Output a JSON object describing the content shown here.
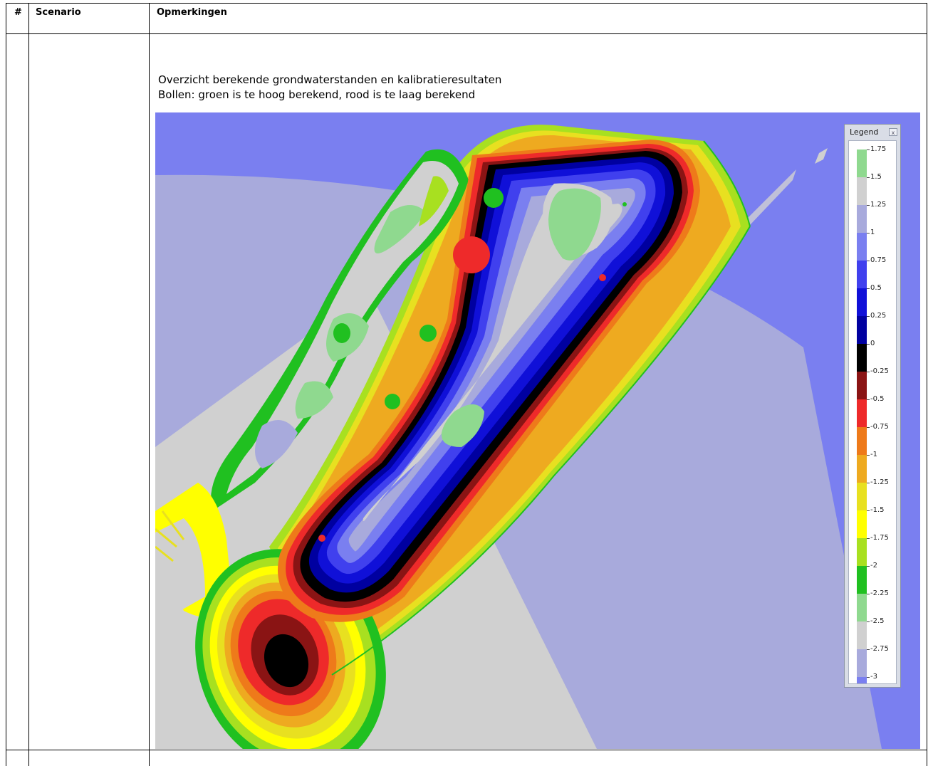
{
  "table": {
    "headers": [
      "#",
      "Scenario",
      "Opmerkingen"
    ],
    "caption_lines": [
      "Overzicht berekende grondwaterstanden en kalibratieresultaten",
      "Bollen: groen is te hoog berekend, rood is te laag berekend"
    ]
  },
  "legend": {
    "title": "Legend",
    "close": "x",
    "labels": [
      "1.75",
      "1.5",
      "1.25",
      "1",
      "0.75",
      "0.5",
      "0.25",
      "0",
      "-0.25",
      "-0.5",
      "-0.75",
      "-1",
      "-1.25",
      "-1.5",
      "-1.75",
      "-2",
      "-2.25",
      "-2.5",
      "-2.75",
      "-3"
    ],
    "colors": [
      "#8fd98f",
      "#d0d0d0",
      "#a8aadc",
      "#7a7ff0",
      "#4040ee",
      "#1010d8",
      "#0000a0",
      "#000000",
      "#8a1414",
      "#ee2a2a",
      "#ee7a1a",
      "#eeaa20",
      "#e8e020",
      "#ffff00",
      "#a8e020",
      "#20c020",
      "#8fd98f",
      "#d0d0d0",
      "#a8aadc",
      "#7a7ff0"
    ]
  },
  "calibration_points": [
    {
      "color": "green",
      "size": "medium"
    },
    {
      "color": "green",
      "size": "small"
    },
    {
      "color": "red",
      "size": "large"
    },
    {
      "color": "red",
      "size": "small"
    },
    {
      "color": "green",
      "size": "medium"
    },
    {
      "color": "green",
      "size": "medium"
    },
    {
      "color": "red",
      "size": "small"
    }
  ]
}
